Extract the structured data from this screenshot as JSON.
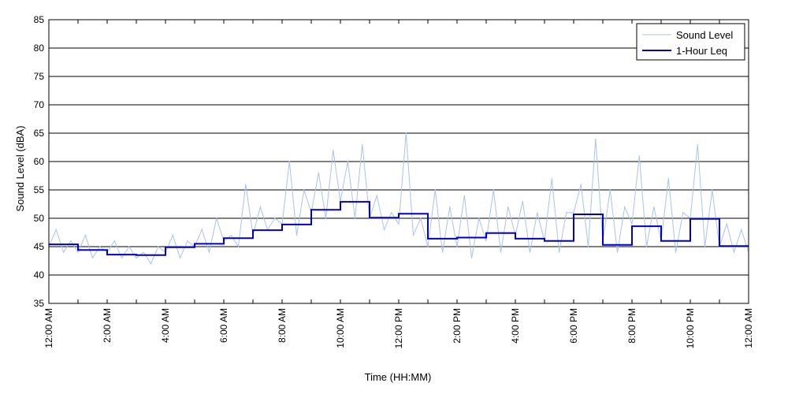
{
  "chart_data": {
    "type": "line",
    "xlabel": "Time (HH:MM)",
    "ylabel": "Sound Level (dBA)",
    "ylim": [
      35,
      85
    ],
    "yticks": [
      35,
      40,
      45,
      50,
      55,
      60,
      65,
      70,
      75,
      80,
      85
    ],
    "xlim_hours": [
      0,
      24
    ],
    "xtick_hours": [
      0,
      2,
      4,
      6,
      8,
      10,
      12,
      14,
      16,
      18,
      20,
      22,
      24
    ],
    "xtick_labels": [
      "12:00 AM",
      "2:00 AM",
      "4:00 AM",
      "6:00 AM",
      "8:00 AM",
      "10:00 AM",
      "12:00 PM",
      "2:00 PM",
      "4:00 PM",
      "6:00 PM",
      "8:00 PM",
      "10:00 PM",
      "12:00 AM"
    ],
    "grid": "horizontal",
    "legend_position": "top-right",
    "series": [
      {
        "name": "Sound Level",
        "color": "#a9c2f0",
        "x_hours": [
          0,
          0.25,
          0.5,
          0.75,
          1,
          1.25,
          1.5,
          1.75,
          2,
          2.25,
          2.5,
          2.75,
          3,
          3.25,
          3.5,
          3.75,
          4,
          4.25,
          4.5,
          4.75,
          5,
          5.25,
          5.5,
          5.75,
          6,
          6.25,
          6.5,
          6.75,
          7,
          7.25,
          7.5,
          7.75,
          8,
          8.25,
          8.5,
          8.75,
          9,
          9.25,
          9.5,
          9.75,
          10,
          10.25,
          10.5,
          10.75,
          11,
          11.25,
          11.5,
          11.75,
          12,
          12.25,
          12.5,
          12.75,
          13,
          13.25,
          13.5,
          13.75,
          14,
          14.25,
          14.5,
          14.75,
          15,
          15.25,
          15.5,
          15.75,
          16,
          16.25,
          16.5,
          16.75,
          17,
          17.25,
          17.5,
          17.75,
          18,
          18.25,
          18.5,
          18.75,
          19,
          19.25,
          19.5,
          19.75,
          20,
          20.25,
          20.5,
          20.75,
          21,
          21.25,
          21.5,
          21.75,
          22,
          22.25,
          22.5,
          22.75,
          23,
          23.25,
          23.5,
          23.75,
          24
        ],
        "values": [
          45,
          48,
          44,
          46,
          44,
          47,
          43,
          45,
          44,
          46,
          43,
          45,
          43,
          44,
          42,
          45,
          44,
          47,
          43,
          46,
          45,
          48,
          44,
          50,
          46,
          47,
          45,
          56,
          47,
          52,
          48,
          50,
          49,
          60,
          47,
          55,
          51,
          58,
          50,
          62,
          53,
          60,
          50,
          63,
          50,
          54,
          48,
          51,
          49,
          65,
          47,
          50,
          45,
          55,
          44,
          52,
          45,
          54,
          43,
          50,
          46,
          55,
          44,
          52,
          47,
          53,
          44,
          51,
          46,
          57,
          44,
          51,
          51,
          56,
          45,
          64,
          46,
          55,
          44,
          52,
          49,
          61,
          45,
          52,
          46,
          57,
          44,
          51,
          50,
          63,
          45,
          55,
          45,
          49,
          44,
          48,
          44
        ]
      },
      {
        "name": "1-Hour Leq",
        "color": "#0000c8",
        "step_hours": [
          0,
          1,
          2,
          3,
          4,
          5,
          6,
          7,
          8,
          9,
          10,
          11,
          12,
          13,
          14,
          15,
          16,
          17,
          18,
          19,
          20,
          21,
          22,
          23
        ],
        "values": [
          45.4,
          44.4,
          43.6,
          43.5,
          44.9,
          45.5,
          46.5,
          47.9,
          48.9,
          51.5,
          52.9,
          50.1,
          50.8,
          46.4,
          46.6,
          47.4,
          46.4,
          46.0,
          50.7,
          45.3,
          48.6,
          46.0,
          49.9,
          45.1
        ]
      }
    ]
  }
}
